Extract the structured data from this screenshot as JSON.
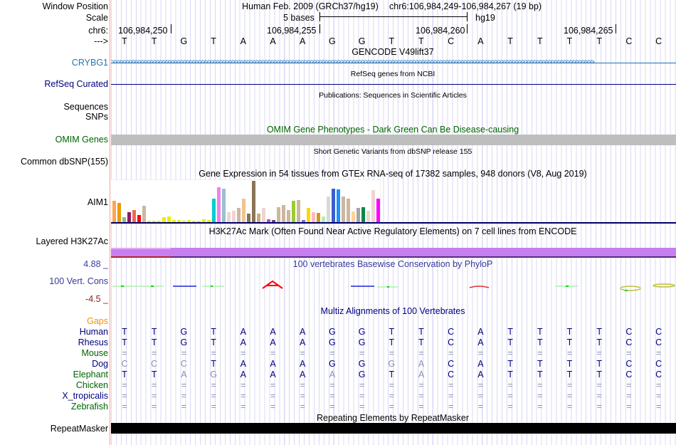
{
  "header": {
    "window_position_label": "Window Position",
    "assembly": "Human Feb. 2009 (GRCh37/hg19)",
    "position": "chr6:106,984,249-106,984,267 (19 bp)",
    "scale_label": "Scale",
    "scale_text": "5 bases",
    "scale_db": "hg19",
    "chrom_label": "chr6:",
    "positions": [
      "106,984,250",
      "106,984,255",
      "106,984,260",
      "106,984,265"
    ],
    "strand_label": "--->",
    "sequence": "TTGTAAAGGTTCATTTTCC"
  },
  "tracks": {
    "gencode": {
      "title": "GENCODE V49lift37",
      "gene": "CRYBG1"
    },
    "refseq": {
      "title": "RefSeq genes from NCBI",
      "label": "RefSeq Curated"
    },
    "publications": {
      "title": "Publications: Sequences in Scientific Articles",
      "label1": "Sequences",
      "label2": "SNPs"
    },
    "omim": {
      "title": "OMIM Gene Phenotypes - Dark Green Can Be Disease-causing",
      "label": "OMIM Genes"
    },
    "dbsnp": {
      "title": "Short Genetic Variants from dbSNP release 155",
      "label": "Common dbSNP(155)"
    },
    "gtex": {
      "title": "Gene Expression in 54 tissues from GTEx RNA-seq of 17382 samples, 948 donors (V8, Aug 2019)",
      "label": "AIM1"
    },
    "h3k27ac": {
      "title": "H3K27Ac Mark (Often Found Near Active Regulatory Elements) on 7 cell lines from ENCODE",
      "label": "Layered H3K27Ac"
    },
    "phylop": {
      "title": "100 vertebrates Basewise Conservation by PhyloP",
      "label": "100 Vert. Cons",
      "max": "4.88 _",
      "min": "-4.5 _"
    },
    "multiz": {
      "title": "Multiz Alignments of 100 Vertebrates",
      "gaps_label": "Gaps",
      "species": [
        {
          "name": "Human",
          "seq": "TTGTAAAGGTTCATTTTCC",
          "gray": [],
          "color": "#000080"
        },
        {
          "name": "Rhesus",
          "seq": "TTGTAAAGGTTCATTTTCC",
          "gray": [],
          "color": "#000080"
        },
        {
          "name": "Mouse",
          "seq": "===================",
          "gray": [],
          "color": "#006400"
        },
        {
          "name": "Dog",
          "seq": "CCCTAAAGGGACATTTTCC",
          "gray": [
            0,
            1,
            2,
            9,
            10
          ],
          "color": "#000080"
        },
        {
          "name": "Elephant",
          "seq": "TTAGAAAAGTACATTTTCC",
          "gray": [
            2,
            3,
            7,
            10
          ],
          "color": "#006400"
        },
        {
          "name": "Chicken",
          "seq": "===================",
          "gray": [],
          "color": "#006400"
        },
        {
          "name": "X_tropicalis",
          "seq": "===================",
          "gray": [],
          "color": "#000080"
        },
        {
          "name": "Zebrafish",
          "seq": "===================",
          "gray": [],
          "color": "#006400"
        }
      ]
    },
    "repeatmasker": {
      "title": "Repeating Elements by RepeatMasker",
      "label": "RepeatMasker"
    }
  },
  "chart_data": {
    "type": "bar",
    "title": "Gene Expression in 54 tissues from GTEx RNA-seq of 17382 samples, 948 donors (V8, Aug 2019)",
    "note": "relative expression (fraction of max)",
    "values": [
      0.53,
      0.47,
      0.13,
      0.25,
      0.3,
      0.18,
      0.4,
      0.05,
      0.05,
      0.05,
      0.13,
      0.15,
      0.07,
      0.07,
      0.05,
      0.07,
      0.05,
      0.05,
      0.08,
      0.07,
      0.58,
      0.85,
      0.82,
      0.25,
      0.28,
      0.35,
      0.58,
      0.22,
      1.0,
      0.22,
      0.35,
      0.08,
      0.07,
      0.38,
      0.43,
      0.3,
      0.52,
      0.55,
      0.07,
      0.35,
      0.25,
      0.23,
      0.15,
      0.63,
      0.82,
      0.8,
      0.63,
      0.58,
      0.27,
      0.35,
      0.37,
      0.28,
      0.78,
      0.57
    ],
    "colors": [
      "#FFA54F",
      "#EE9A00",
      "#8FBC8F",
      "#8B1C62",
      "#EE6A50",
      "#FF0000",
      "#CDB79E",
      "#EEEE00",
      "#EEEE00",
      "#EEEE00",
      "#EEEE00",
      "#EEEE00",
      "#EEEE00",
      "#EEEE00",
      "#EEEE00",
      "#EEEE00",
      "#EEEE00",
      "#EEEE00",
      "#EEEE00",
      "#EEEE00",
      "#00CED1",
      "#EE82EE",
      "#9AC0CD",
      "#EED5D2",
      "#EED5D2",
      "#CDB79E",
      "#EEC591",
      "#8B7355",
      "#8B7355",
      "#CDAA7D",
      "#EED5D2",
      "#B452CD",
      "#7A378B",
      "#CDB79E",
      "#CDB79E",
      "#CDB79E",
      "#9ACD32",
      "#CDB79E",
      "#7B68EE",
      "#FFD700",
      "#FFB6C1",
      "#CD9B1D",
      "#B4EEB4",
      "#D9D9D9",
      "#3A5FCD",
      "#1E90FF",
      "#CDB79E",
      "#CDB79E",
      "#FFD39B",
      "#A6A6A6",
      "#008B45",
      "#EED5D2",
      "#EED5D2",
      "#FF00FF"
    ]
  }
}
